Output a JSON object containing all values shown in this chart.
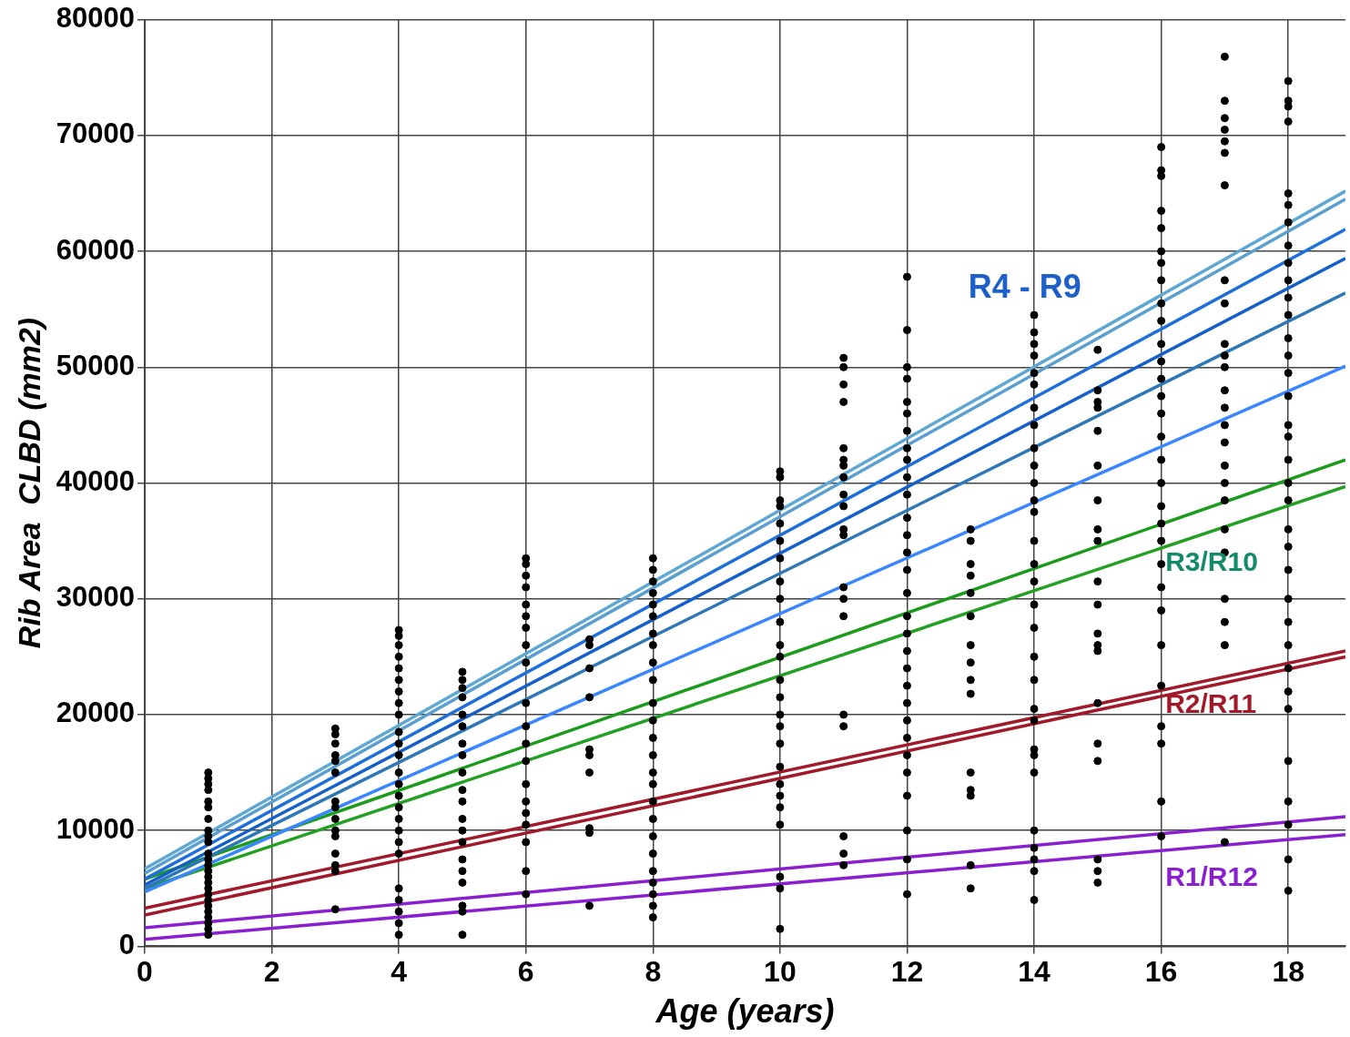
{
  "chart_data": {
    "type": "scatter",
    "xlabel": "Age (years)",
    "ylabel": "Rib Area  CLBD (mm2)",
    "xlim": [
      0,
      18.9
    ],
    "xticks": [
      0,
      2,
      4,
      6,
      8,
      10,
      12,
      14,
      16,
      18
    ],
    "ylim": [
      0,
      80000
    ],
    "yticks": [
      0,
      10000,
      20000,
      30000,
      40000,
      50000,
      60000,
      70000,
      80000
    ],
    "grid": true,
    "annotations": [
      "R4 - R9",
      "R3/R10",
      "R2/R11",
      "R1/R12"
    ],
    "series": [
      {
        "type": "line",
        "color": "#5fa8d3",
        "marker": "none",
        "x": [
          0,
          18.9
        ],
        "values": [
          6700,
          65200
        ]
      },
      {
        "type": "line",
        "color": "#5b9fd0",
        "x": [
          0,
          18.9
        ],
        "values": [
          6300,
          64500
        ]
      },
      {
        "type": "line",
        "color": "#1e6fd9",
        "x": [
          0,
          18.9
        ],
        "values": [
          5800,
          61900
        ]
      },
      {
        "type": "line",
        "color": "#1560c8",
        "x": [
          0,
          18.9
        ],
        "values": [
          5300,
          59400
        ]
      },
      {
        "type": "line",
        "color": "#2e78b8",
        "x": [
          0,
          18.9
        ],
        "values": [
          5000,
          56400
        ]
      },
      {
        "type": "line",
        "color": "#3a86ff",
        "x": [
          0,
          18.9
        ],
        "values": [
          4700,
          50100
        ]
      },
      {
        "type": "line",
        "color": "#1a9c1a",
        "x": [
          0,
          18.9
        ],
        "values": [
          5800,
          42000
        ]
      },
      {
        "type": "line",
        "color": "#22a022",
        "x": [
          0,
          18.9
        ],
        "values": [
          5000,
          39700
        ]
      },
      {
        "type": "line",
        "color": "#a01a2a",
        "x": [
          0,
          18.9
        ],
        "values": [
          3300,
          25500
        ]
      },
      {
        "type": "line",
        "color": "#a01a2a",
        "x": [
          0,
          18.9
        ],
        "values": [
          2700,
          25000
        ]
      },
      {
        "type": "line",
        "color": "#8a1fd0",
        "x": [
          0,
          18.9
        ],
        "values": [
          1600,
          11200
        ]
      },
      {
        "type": "line",
        "color": "#8a1fd0",
        "x": [
          0,
          18.9
        ],
        "values": [
          600,
          9650
        ]
      },
      {
        "type": "scatter",
        "color": "#000000",
        "x": [
          1,
          1,
          1,
          1,
          1,
          1,
          1,
          1,
          1,
          1,
          1,
          1,
          1,
          1,
          1,
          1,
          1,
          1,
          1,
          1,
          1,
          1,
          1,
          1,
          1
        ],
        "values": [
          15000,
          14500,
          14000,
          13500,
          12500,
          12000,
          11000,
          10000,
          9500,
          9000,
          8000,
          7500,
          7000,
          6500,
          6000,
          5500,
          5000,
          4500,
          4000,
          3500,
          3000,
          2500,
          2000,
          1500,
          1000
        ]
      },
      {
        "type": "scatter",
        "color": "#000000",
        "x": [
          3,
          3,
          3,
          3,
          3,
          3,
          3,
          3,
          3,
          3,
          3,
          3,
          3,
          3,
          3
        ],
        "values": [
          18800,
          18300,
          17500,
          16500,
          16000,
          15000,
          12500,
          12000,
          11000,
          10000,
          9500,
          8000,
          7000,
          6500,
          3200
        ]
      },
      {
        "type": "scatter",
        "color": "#000000",
        "x": [
          4,
          4,
          4,
          4,
          4,
          4,
          4,
          4,
          4,
          4,
          4,
          4,
          4,
          4,
          4,
          4,
          4,
          4,
          4,
          4,
          4,
          4,
          4,
          4,
          4
        ],
        "values": [
          27300,
          26800,
          26000,
          25000,
          24000,
          23000,
          22000,
          21000,
          20000,
          18500,
          17500,
          16500,
          15000,
          14000,
          13000,
          12000,
          11000,
          10000,
          9000,
          8000,
          5000,
          4000,
          3000,
          2000,
          1000
        ]
      },
      {
        "type": "scatter",
        "color": "#000000",
        "x": [
          5,
          5,
          5,
          5,
          5,
          5,
          5,
          5,
          5,
          5,
          5,
          5,
          5,
          5,
          5,
          5,
          5,
          5,
          5,
          5
        ],
        "values": [
          23700,
          23000,
          22300,
          21500,
          20000,
          19000,
          17500,
          16500,
          15000,
          13500,
          12500,
          11000,
          10000,
          9000,
          7500,
          6500,
          5500,
          3500,
          3000,
          1000
        ]
      },
      {
        "type": "scatter",
        "color": "#000000",
        "x": [
          6,
          6,
          6,
          6,
          6,
          6,
          6,
          6,
          6,
          6,
          6,
          6,
          6,
          6,
          6,
          6,
          6,
          6,
          6,
          6
        ],
        "values": [
          33500,
          33000,
          32000,
          31000,
          29500,
          28500,
          27500,
          26000,
          24500,
          21000,
          19000,
          17500,
          16000,
          14000,
          12500,
          11500,
          10500,
          9000,
          6500,
          4500
        ]
      },
      {
        "type": "scatter",
        "color": "#000000",
        "x": [
          7,
          7,
          7,
          7,
          7,
          7,
          7,
          7,
          7,
          7
        ],
        "values": [
          26500,
          26000,
          24000,
          21500,
          17000,
          16500,
          15000,
          10200,
          9800,
          3500
        ]
      },
      {
        "type": "scatter",
        "color": "#000000",
        "x": [
          8,
          8,
          8,
          8,
          8,
          8,
          8,
          8,
          8,
          8,
          8,
          8,
          8,
          8,
          8,
          8,
          8,
          8,
          8,
          8,
          8,
          8,
          8,
          8,
          8
        ],
        "values": [
          33500,
          32500,
          31500,
          30500,
          29500,
          28500,
          27000,
          26000,
          24500,
          23000,
          21000,
          19500,
          18000,
          16500,
          15000,
          14000,
          12500,
          11000,
          9500,
          8000,
          6500,
          5500,
          4500,
          3500,
          2500
        ]
      },
      {
        "type": "scatter",
        "color": "#000000",
        "x": [
          10,
          10,
          10,
          10,
          10,
          10,
          10,
          10,
          10,
          10,
          10,
          10,
          10,
          10,
          10,
          10,
          10,
          10,
          10,
          10,
          10,
          10,
          10,
          10,
          10
        ],
        "values": [
          41000,
          40500,
          38500,
          38000,
          36500,
          35000,
          33500,
          31500,
          30000,
          28000,
          26000,
          25000,
          23000,
          21500,
          20000,
          19000,
          17500,
          15500,
          14000,
          13000,
          12000,
          10500,
          6000,
          5000,
          1500
        ]
      },
      {
        "type": "scatter",
        "color": "#000000",
        "x": [
          11,
          11,
          11,
          11,
          11,
          11,
          11,
          11,
          11,
          11,
          11,
          11,
          11,
          11,
          11,
          11,
          11,
          11,
          11,
          11
        ],
        "values": [
          50800,
          50000,
          48500,
          47000,
          43000,
          41500,
          40500,
          39000,
          38000,
          36000,
          35500,
          31000,
          30000,
          28500,
          20000,
          19000,
          9500,
          8000,
          7000,
          42000
        ]
      },
      {
        "type": "scatter",
        "color": "#000000",
        "x": [
          12,
          12,
          12,
          12,
          12,
          12,
          12,
          12,
          12,
          12,
          12,
          12,
          12,
          12,
          12,
          12,
          12,
          12,
          12,
          12,
          12,
          12,
          12,
          12,
          12,
          12,
          12,
          12,
          12,
          12
        ],
        "values": [
          57800,
          53200,
          50000,
          49000,
          47000,
          46000,
          44500,
          43000,
          42000,
          40500,
          39000,
          37000,
          35500,
          34000,
          32500,
          30500,
          28500,
          27000,
          25500,
          24000,
          22500,
          21000,
          19500,
          18000,
          16500,
          15000,
          13000,
          10000,
          7500,
          4500
        ]
      },
      {
        "type": "scatter",
        "color": "#000000",
        "x": [
          13,
          13,
          13,
          13,
          13,
          13,
          13,
          13,
          13,
          13,
          13,
          13,
          13,
          13,
          13
        ],
        "values": [
          36000,
          35000,
          33000,
          32000,
          30500,
          28500,
          26000,
          24500,
          23000,
          21800,
          15000,
          13500,
          13000,
          7000,
          5000
        ]
      },
      {
        "type": "scatter",
        "color": "#000000",
        "x": [
          14,
          14,
          14,
          14,
          14,
          14,
          14,
          14,
          14,
          14,
          14,
          14,
          14,
          14,
          14,
          14,
          14,
          14,
          14,
          14,
          14,
          14,
          14,
          14,
          14,
          14,
          14,
          14,
          14,
          14
        ],
        "values": [
          54500,
          53000,
          52000,
          51000,
          49500,
          48500,
          46500,
          45000,
          43000,
          41500,
          40000,
          38500,
          37500,
          35000,
          33000,
          31500,
          29500,
          27500,
          25000,
          23000,
          20500,
          19500,
          17000,
          16500,
          15000,
          10000,
          8500,
          7500,
          6500,
          4000
        ]
      },
      {
        "type": "scatter",
        "color": "#000000",
        "x": [
          15,
          15,
          15,
          15,
          15,
          15,
          15,
          15,
          15,
          15,
          15,
          15,
          15,
          15,
          15,
          15,
          15,
          15,
          15,
          15
        ],
        "values": [
          51500,
          48000,
          47000,
          46500,
          44500,
          41500,
          38500,
          36000,
          35000,
          31500,
          29500,
          27000,
          26000,
          25500,
          21000,
          17500,
          16000,
          7500,
          6500,
          5500
        ]
      },
      {
        "type": "scatter",
        "color": "#000000",
        "x": [
          16,
          16,
          16,
          16,
          16,
          16,
          16,
          16,
          16,
          16,
          16,
          16,
          16,
          16,
          16,
          16,
          16,
          16,
          16,
          16,
          16,
          16,
          16,
          16,
          16,
          16,
          16,
          16,
          16,
          16
        ],
        "values": [
          69000,
          67000,
          66500,
          63500,
          62000,
          60000,
          59000,
          57500,
          55500,
          54000,
          52000,
          50500,
          49000,
          47500,
          46000,
          44000,
          42000,
          40000,
          38000,
          36500,
          35000,
          33000,
          31000,
          29000,
          26000,
          22500,
          19000,
          17500,
          12500,
          9500
        ]
      },
      {
        "type": "scatter",
        "color": "#000000",
        "x": [
          17,
          17,
          17,
          17,
          17,
          17,
          17,
          17,
          17,
          17,
          17,
          17,
          17,
          17,
          17,
          17,
          17,
          17,
          17,
          17,
          17,
          17,
          17,
          17,
          17
        ],
        "values": [
          76800,
          73000,
          71500,
          70500,
          69500,
          68500,
          65700,
          57500,
          55500,
          52000,
          51000,
          50000,
          48000,
          46500,
          45000,
          43500,
          41500,
          40000,
          38500,
          36000,
          34000,
          30000,
          28000,
          26000,
          9000
        ]
      },
      {
        "type": "scatter",
        "color": "#000000",
        "x": [
          18,
          18,
          18,
          18,
          18,
          18,
          18,
          18,
          18,
          18,
          18,
          18,
          18,
          18,
          18,
          18,
          18,
          18,
          18,
          18,
          18,
          18,
          18,
          18,
          18,
          18,
          18,
          18,
          18,
          18,
          18,
          18,
          18,
          18,
          18
        ],
        "values": [
          74700,
          73000,
          72500,
          71200,
          65000,
          64000,
          62500,
          60500,
          59000,
          57500,
          56000,
          54500,
          52500,
          51000,
          49500,
          47500,
          45000,
          44000,
          42000,
          40000,
          38500,
          36000,
          34500,
          32500,
          30000,
          28000,
          26000,
          24000,
          22000,
          20500,
          16000,
          12500,
          10500,
          7500,
          4800
        ]
      }
    ]
  }
}
